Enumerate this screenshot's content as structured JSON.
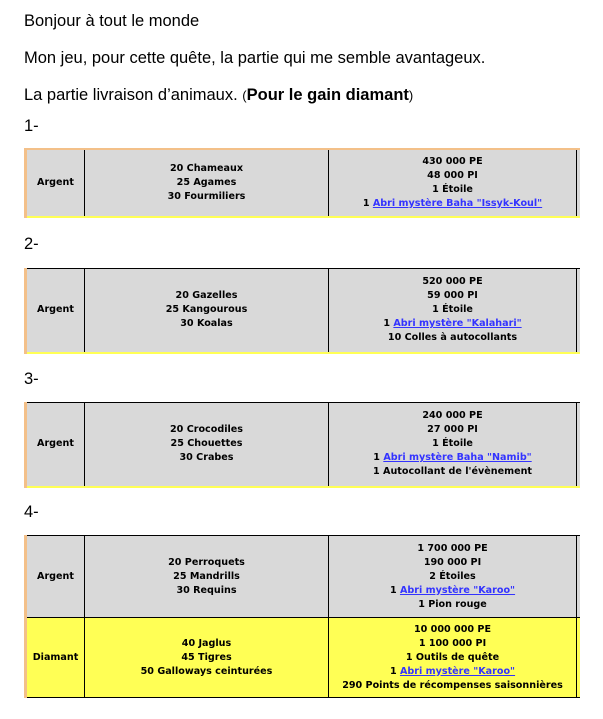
{
  "intro": {
    "greeting": "Bonjour à tout le monde",
    "line2": "Mon jeu, pour cette quête, la partie qui me semble avantageux.",
    "line3_prefix": "La partie livraison d’animaux. ",
    "line3_paren_open": "(",
    "line3_bold": "Pour le gain diamant",
    "line3_paren_close": ")"
  },
  "sections": [
    {
      "number": "1-",
      "rows": [
        {
          "tier": "Argent",
          "animals": [
            "20 Chameaux",
            "25 Agames",
            "30 Fourmiliers"
          ],
          "rewards": [
            "430 000 PE",
            "48 000 PI",
            "1 Étoile"
          ],
          "link_prefix": "1 ",
          "link": "Abri mystère Baha \"Issyk-Koul\"",
          "after": []
        }
      ]
    },
    {
      "number": "2-",
      "rows": [
        {
          "tier": "Argent",
          "animals": [
            "20 Gazelles",
            "25 Kangourous",
            "30 Koalas"
          ],
          "rewards": [
            "520 000 PE",
            "59 000 PI",
            "1 Étoile"
          ],
          "link_prefix": "1 ",
          "link": "Abri mystère \"Kalahari\"",
          "after": [
            "10 Colles à autocollants"
          ]
        }
      ]
    },
    {
      "number": "3-",
      "rows": [
        {
          "tier": "Argent",
          "animals": [
            "20 Crocodiles",
            "25 Chouettes",
            "30 Crabes"
          ],
          "rewards": [
            "240 000 PE",
            "27 000 PI",
            "1 Étoile"
          ],
          "link_prefix": "1 ",
          "link": "Abri mystère Baha \"Namib\"",
          "after": [
            "1 Autocollant de l'évènement"
          ]
        }
      ]
    },
    {
      "number": "4-",
      "rows": [
        {
          "tier": "Argent",
          "animals": [
            "20 Perroquets",
            "25 Mandrills",
            "30 Requins"
          ],
          "rewards": [
            "1 700 000 PE",
            "190 000 PI",
            "2 Étoiles"
          ],
          "link_prefix": "1 ",
          "link": "Abri mystère \"Karoo\"",
          "after": [
            "1 Pion rouge"
          ]
        },
        {
          "tier": "Diamant",
          "animals": [
            "40 Jaglus",
            "45 Tigres",
            "50 Galloways ceinturées"
          ],
          "rewards": [
            "10 000 000 PE",
            "1 100 000 PI",
            "1 Outils de quête"
          ],
          "link_prefix": "1 ",
          "link": "Abri mystère \"Karoo\"",
          "after": [
            "290 Points de récompenses saisonnières"
          ]
        }
      ]
    }
  ],
  "colors": {
    "argent_row": "#d9d9d9",
    "diamant_row": "#ffff55",
    "link": "#3333ff",
    "table_accent": "#f3c089"
  }
}
